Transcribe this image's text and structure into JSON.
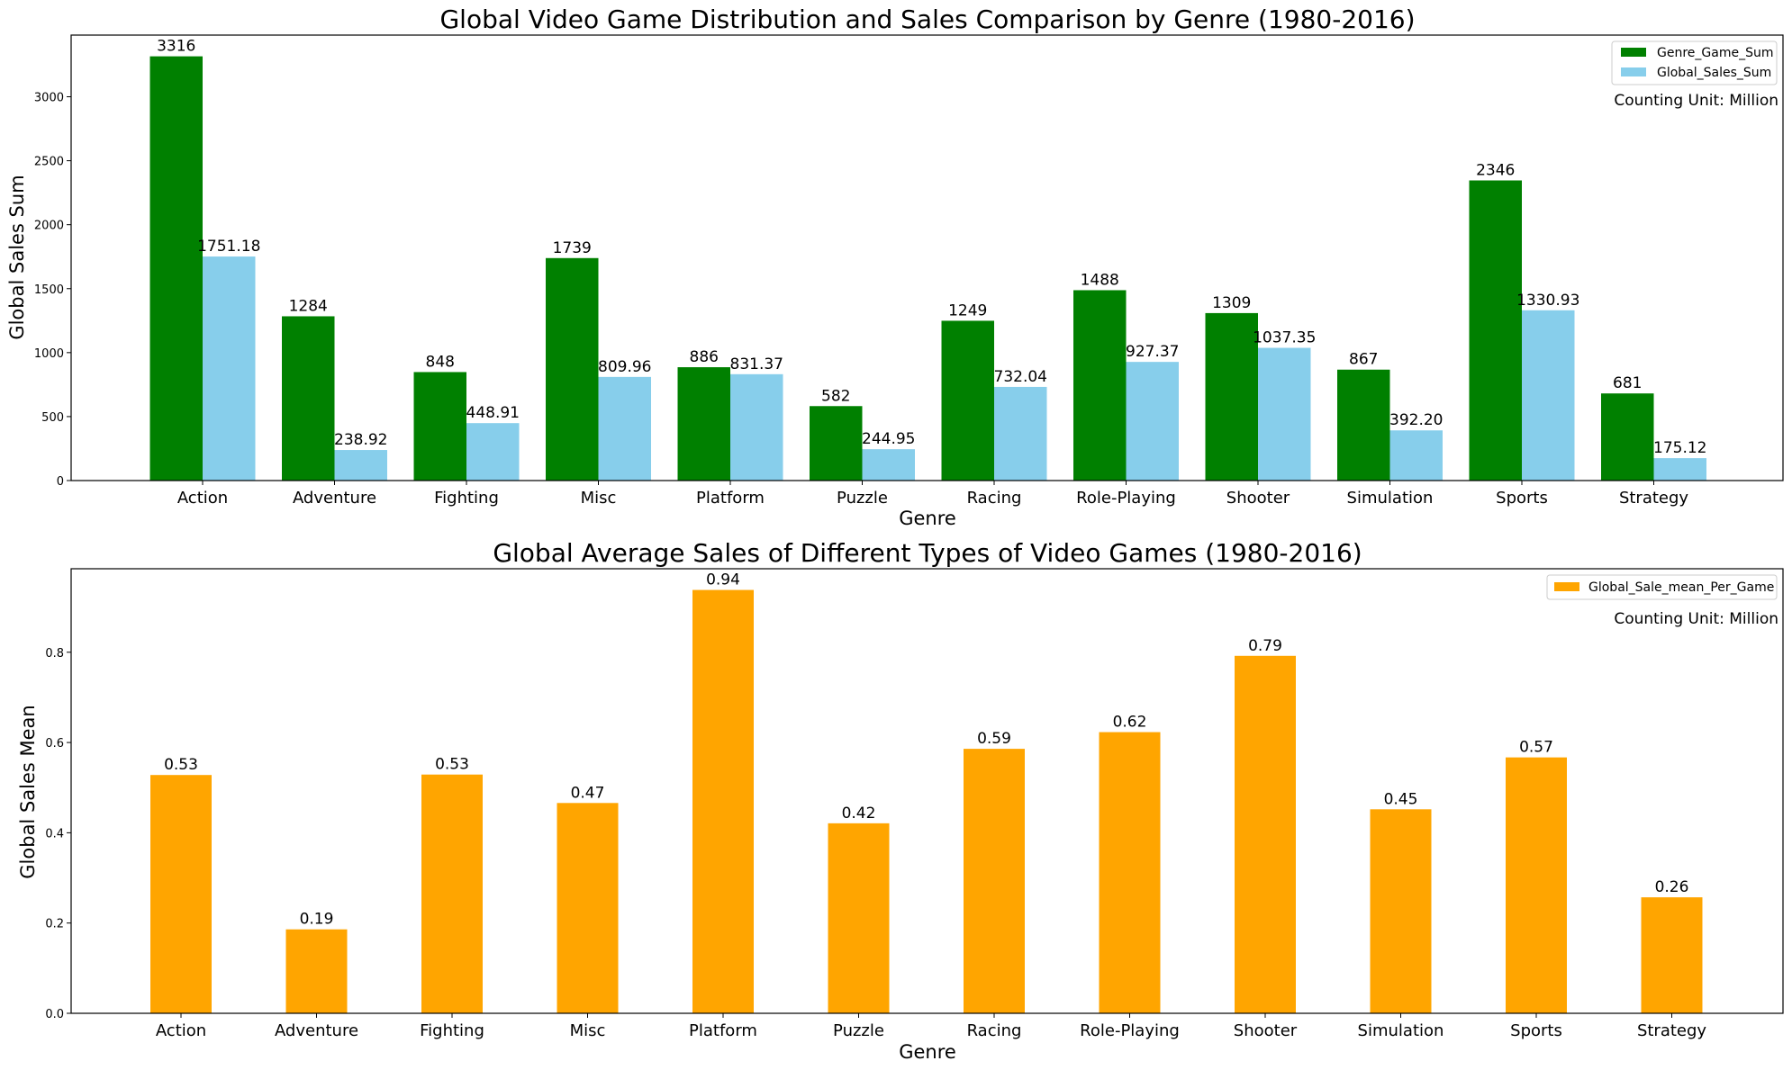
{
  "chart_data": [
    {
      "type": "bar",
      "title": "Global Video Game Distribution and Sales Comparison by Genre (1980-2016)",
      "xlabel": "Genre",
      "ylabel": "Global Sales Sum",
      "categories": [
        "Action",
        "Adventure",
        "Fighting",
        "Misc",
        "Platform",
        "Puzzle",
        "Racing",
        "Role-Playing",
        "Shooter",
        "Simulation",
        "Sports",
        "Strategy"
      ],
      "series": [
        {
          "name": "Genre_Game_Sum",
          "color": "#008000",
          "values": [
            3316,
            1284,
            848,
            1739,
            886,
            582,
            1249,
            1488,
            1309,
            867,
            2346,
            681
          ],
          "labels": [
            "3316",
            "1284",
            "848",
            "1739",
            "886",
            "582",
            "1249",
            "1488",
            "1309",
            "867",
            "2346",
            "681"
          ]
        },
        {
          "name": "Global_Sales_Sum",
          "color": "#87ceeb",
          "values": [
            1751.18,
            238.92,
            448.91,
            809.96,
            831.37,
            244.95,
            732.04,
            927.37,
            1037.35,
            392.2,
            1330.93,
            175.12
          ],
          "labels": [
            "1751.18",
            "238.92",
            "448.91",
            "809.96",
            "831.37",
            "244.95",
            "732.04",
            "927.37",
            "1037.35",
            "392.20",
            "1330.93",
            "175.12"
          ]
        }
      ],
      "ylim": [
        0,
        3482
      ],
      "yticks": [
        0,
        500,
        1000,
        1500,
        2000,
        2500,
        3000
      ],
      "ytick_labels": [
        "0",
        "500",
        "1000",
        "1500",
        "2000",
        "2500",
        "3000"
      ],
      "legend_position": "top-right",
      "annotation": "Counting Unit: Million",
      "grid": false
    },
    {
      "type": "bar",
      "title": "Global Average Sales of Different Types of Video Games (1980-2016)",
      "xlabel": "Genre",
      "ylabel": "Global Sales Mean",
      "categories": [
        "Action",
        "Adventure",
        "Fighting",
        "Misc",
        "Platform",
        "Puzzle",
        "Racing",
        "Role-Playing",
        "Shooter",
        "Simulation",
        "Sports",
        "Strategy"
      ],
      "series": [
        {
          "name": "Global_Sale_mean_Per_Game",
          "color": "#ffa500",
          "values": [
            0.528,
            0.186,
            0.529,
            0.466,
            0.938,
            0.421,
            0.586,
            0.623,
            0.792,
            0.452,
            0.567,
            0.257
          ],
          "labels": [
            "0.53",
            "0.19",
            "0.53",
            "0.47",
            "0.94",
            "0.42",
            "0.59",
            "0.62",
            "0.79",
            "0.45",
            "0.57",
            "0.26"
          ]
        }
      ],
      "ylim": [
        0,
        0.985
      ],
      "yticks": [
        0,
        0.2,
        0.4,
        0.6,
        0.8
      ],
      "ytick_labels": [
        "0.0",
        "0.2",
        "0.4",
        "0.6",
        "0.8"
      ],
      "legend_position": "top-right",
      "annotation": "Counting Unit: Million",
      "grid": false
    }
  ]
}
